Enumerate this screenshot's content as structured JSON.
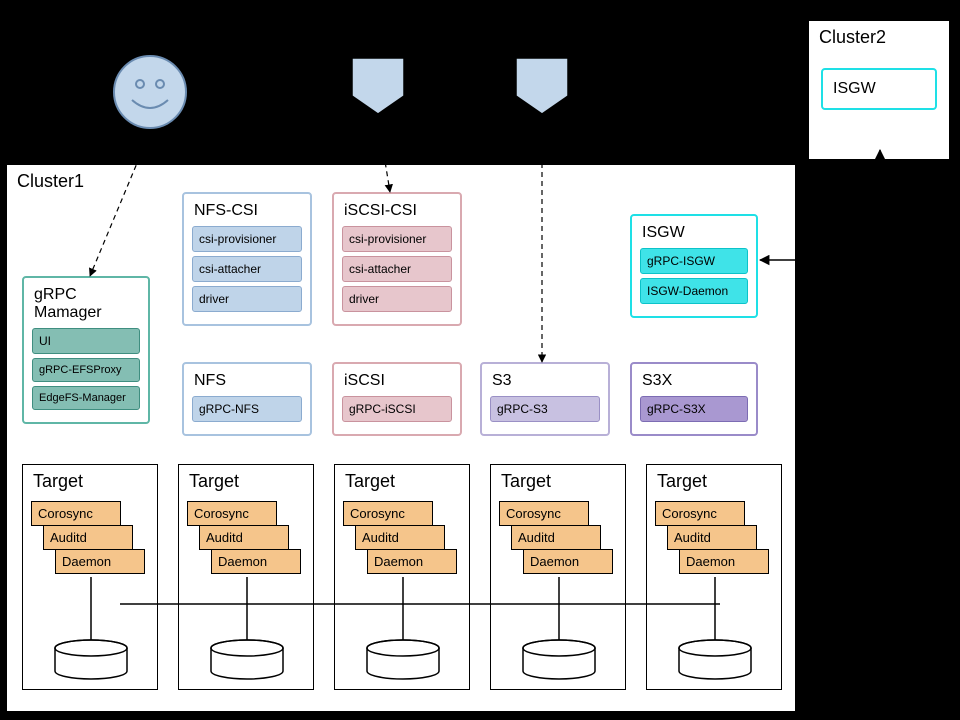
{
  "colors": {
    "bg": "#000000",
    "panel_bg": "#ffffff",
    "face_fill": "#c3d7eb",
    "face_stroke": "#6a8bb0",
    "pentagon_fill": "#c3d7eb",
    "pentagon_stroke": "#000000",
    "teal_border": "#5fb6a6",
    "teal_chip": "#84beb3",
    "teal_chip_border": "#3f8e80",
    "blue_border": "#a8c3df",
    "blue_chip": "#bfd4e9",
    "blue_chip_border": "#8babcf",
    "pink_border": "#d9a9b0",
    "pink_chip": "#e7c6cc",
    "pink_chip_border": "#c9939e",
    "cyan_border": "#1ee0e6",
    "cyan_chip": "#3fe3e8",
    "cyan_chip_border": "#0cc3c9",
    "lav_border": "#b8b0d7",
    "lav_chip": "#c8c1e1",
    "lav_chip_border": "#9a90c5",
    "purple_border": "#9a8bc9",
    "purple_chip": "#a998d1",
    "purple_chip_border": "#7c6cb3",
    "target_chip": "#f5c58b",
    "target_chip_border": "#000000"
  },
  "cluster1": {
    "title": "Cluster1",
    "grpc_manager": {
      "title": "gRPC Mamager",
      "items": [
        "UI",
        "gRPC-EFSProxy",
        "EdgeFS-Manager"
      ]
    },
    "nfs_csi": {
      "title": "NFS-CSI",
      "items": [
        "csi-provisioner",
        "csi-attacher",
        "driver"
      ]
    },
    "iscsi_csi": {
      "title": "iSCSI-CSI",
      "items": [
        "csi-provisioner",
        "csi-attacher",
        "driver"
      ]
    },
    "isgw": {
      "title": "ISGW",
      "items": [
        "gRPC-ISGW",
        "ISGW-Daemon"
      ]
    },
    "nfs": {
      "title": "NFS",
      "items": [
        "gRPC-NFS"
      ]
    },
    "iscsi": {
      "title": "iSCSI",
      "items": [
        "gRPC-iSCSI"
      ]
    },
    "s3": {
      "title": "S3",
      "items": [
        "gRPC-S3"
      ]
    },
    "s3x": {
      "title": "S3X",
      "items": [
        "gRPC-S3X"
      ]
    },
    "target_title": "Target",
    "target_items": [
      "Corosync",
      "Auditd",
      "Daemon"
    ]
  },
  "cluster2": {
    "title": "Cluster2",
    "isgw": {
      "title": "ISGW"
    }
  }
}
